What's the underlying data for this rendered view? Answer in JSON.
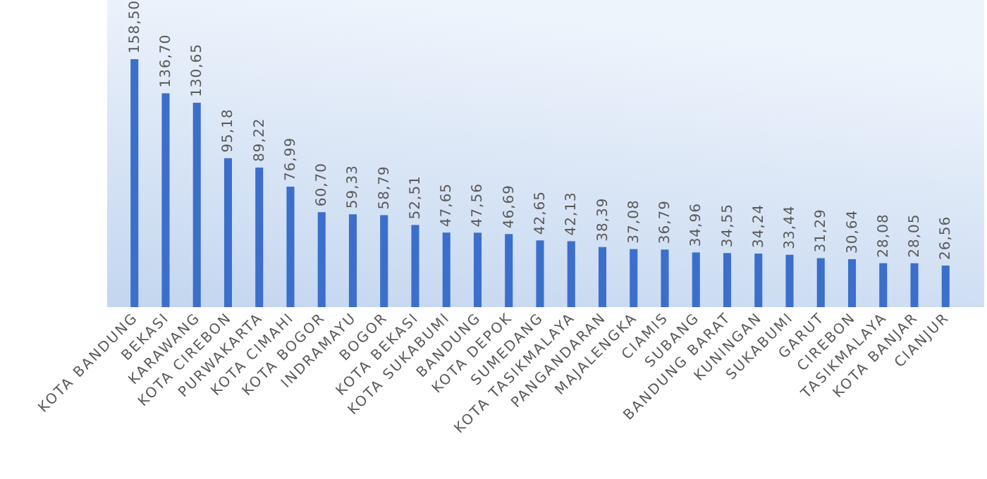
{
  "chart_data": {
    "type": "bar",
    "categories": [
      "KOTA BANDUNG",
      "BEKASI",
      "KARAWANG",
      "KOTA CIREBON",
      "PURWAKARTA",
      "KOTA CIMAHI",
      "KOTA BOGOR",
      "INDRAMAYU",
      "BOGOR",
      "KOTA BEKASI",
      "KOTA SUKABUMI",
      "BANDUNG",
      "KOTA DEPOK",
      "SUMEDANG",
      "KOTA TASIKMALAYA",
      "PANGANDARAN",
      "MAJALENGKA",
      "CIAMIS",
      "SUBANG",
      "BANDUNG BARAT",
      "KUNINGAN",
      "SUKABUMI",
      "GARUT",
      "CIREBON",
      "TASIKMALAYA",
      "KOTA BANJAR",
      "CIANJUR"
    ],
    "values": [
      158.5,
      136.7,
      130.65,
      95.18,
      89.22,
      76.99,
      60.7,
      59.33,
      58.79,
      52.51,
      47.65,
      47.56,
      46.69,
      42.65,
      42.13,
      38.39,
      37.08,
      36.79,
      34.96,
      34.55,
      34.24,
      33.44,
      31.29,
      30.64,
      28.08,
      28.05,
      26.56
    ],
    "value_labels": [
      "158,50",
      "136,70",
      "130,65",
      "95,18",
      "89,22",
      "76,99",
      "60,70",
      "59,33",
      "58,79",
      "52,51",
      "47,65",
      "47,56",
      "46,69",
      "42,65",
      "42,13",
      "38,39",
      "37,08",
      "36,79",
      "34,96",
      "34,55",
      "34,24",
      "33,44",
      "31,29",
      "30,64",
      "28,08",
      "28,05",
      "26,56"
    ],
    "color": "#3c6ecb"
  }
}
